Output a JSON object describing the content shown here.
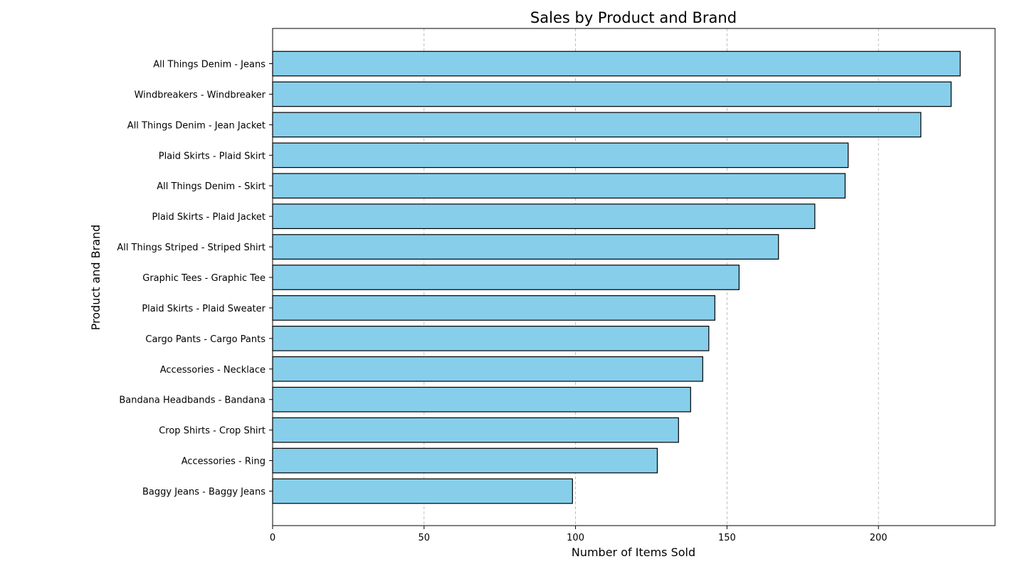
{
  "chart_data": {
    "type": "bar",
    "orientation": "horizontal",
    "title": "Sales by Product and Brand",
    "xlabel": "Number of Items Sold",
    "ylabel": "Product and Brand",
    "xlim": [
      0,
      238.5
    ],
    "xticks": [
      0,
      50,
      100,
      150,
      200
    ],
    "grid": "x-dashed",
    "categories": [
      "All Things Denim - Jeans",
      "Windbreakers - Windbreaker",
      "All Things Denim - Jean Jacket",
      "Plaid Skirts - Plaid Skirt",
      "All Things Denim - Skirt",
      "Plaid Skirts - Plaid Jacket",
      "All Things Striped - Striped Shirt",
      "Graphic Tees - Graphic Tee",
      "Plaid Skirts - Plaid Sweater",
      "Cargo Pants - Cargo Pants",
      "Accessories - Necklace",
      "Bandana Headbands - Bandana",
      "Crop Shirts - Crop Shirt",
      "Accessories - Ring",
      "Baggy Jeans - Baggy Jeans"
    ],
    "values": [
      227,
      224,
      214,
      190,
      189,
      179,
      167,
      154,
      146,
      144,
      142,
      138,
      134,
      127,
      99
    ],
    "colors": {
      "bar": "#87CEEB",
      "edge": "#000000",
      "grid": "#b0b0b0"
    }
  }
}
